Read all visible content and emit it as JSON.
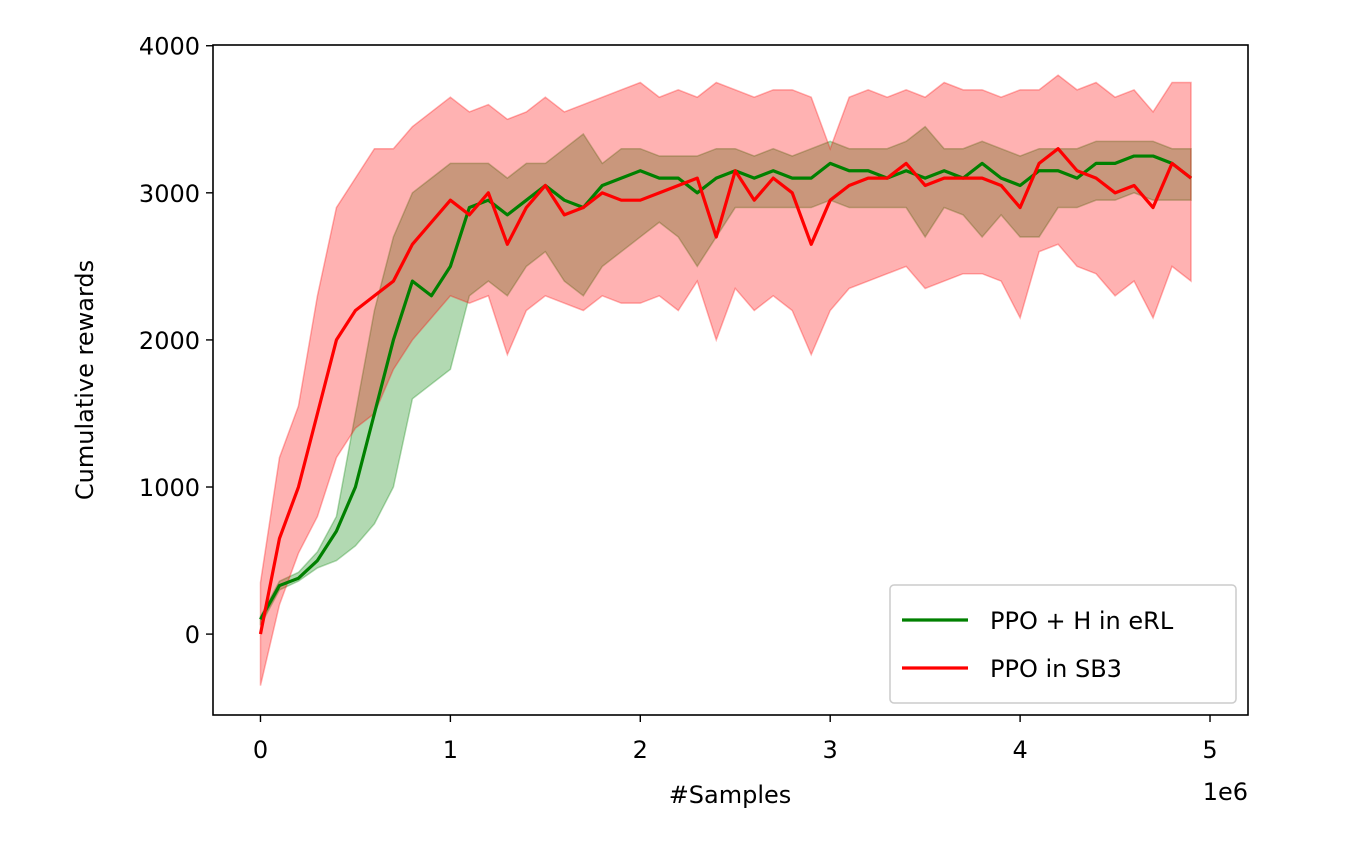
{
  "chart_data": {
    "type": "line",
    "xlabel": "#Samples",
    "ylabel": "Cumulative rewards",
    "x_offset_label": "1e6",
    "x": [
      0,
      0.1,
      0.2,
      0.3,
      0.4,
      0.5,
      0.6,
      0.7,
      0.8,
      0.9,
      1.0,
      1.1,
      1.2,
      1.3,
      1.4,
      1.5,
      1.6,
      1.7,
      1.8,
      1.9,
      2.0,
      2.1,
      2.2,
      2.3,
      2.4,
      2.5,
      2.6,
      2.7,
      2.8,
      2.9,
      3.0,
      3.1,
      3.2,
      3.3,
      3.4,
      3.5,
      3.6,
      3.7,
      3.8,
      3.9,
      4.0,
      4.1,
      4.2,
      4.3,
      4.4,
      4.5,
      4.6,
      4.7,
      4.8,
      4.9
    ],
    "xlim": [
      -0.25,
      5.2
    ],
    "xticks": [
      0,
      1,
      2,
      3,
      4,
      5
    ],
    "ylim": [
      -550,
      4005
    ],
    "yticks": [
      0,
      1000,
      2000,
      3000,
      4000
    ],
    "grid": false,
    "legend": "lower right",
    "series": [
      {
        "name": "PPO + H in eRL",
        "color": "#008000",
        "values": [
          100,
          330,
          380,
          500,
          700,
          1000,
          1500,
          2000,
          2400,
          2300,
          2500,
          2900,
          2950,
          2850,
          2950,
          3050,
          2950,
          2900,
          3050,
          3100,
          3150,
          3100,
          3100,
          3000,
          3100,
          3150,
          3100,
          3150,
          3100,
          3100,
          3200,
          3150,
          3150,
          3100,
          3150,
          3100,
          3150,
          3100,
          3200,
          3100,
          3050,
          3150,
          3150,
          3100,
          3200,
          3200,
          3250,
          3250,
          3200,
          3100
        ],
        "lower": [
          60,
          300,
          360,
          450,
          500,
          600,
          750,
          1000,
          1600,
          1700,
          1800,
          2300,
          2400,
          2300,
          2500,
          2600,
          2400,
          2300,
          2500,
          2600,
          2700,
          2800,
          2700,
          2500,
          2700,
          2900,
          2900,
          2900,
          2900,
          2900,
          2950,
          2900,
          2900,
          2900,
          2900,
          2700,
          2900,
          2850,
          2700,
          2850,
          2700,
          2700,
          2900,
          2900,
          2950,
          2950,
          3000,
          2950,
          2950,
          2950
        ],
        "upper": [
          120,
          360,
          420,
          560,
          800,
          1500,
          2200,
          2700,
          3000,
          3100,
          3200,
          3200,
          3200,
          3100,
          3200,
          3200,
          3300,
          3400,
          3200,
          3300,
          3300,
          3250,
          3250,
          3250,
          3300,
          3300,
          3250,
          3300,
          3250,
          3300,
          3350,
          3300,
          3300,
          3300,
          3350,
          3450,
          3300,
          3300,
          3350,
          3300,
          3250,
          3300,
          3300,
          3300,
          3350,
          3350,
          3350,
          3350,
          3300,
          3300
        ]
      },
      {
        "name": "PPO in SB3",
        "color": "#ff0000",
        "values": [
          0,
          650,
          1000,
          1500,
          2000,
          2200,
          2300,
          2400,
          2650,
          2800,
          2950,
          2850,
          3000,
          2650,
          2900,
          3050,
          2850,
          2900,
          3000,
          2950,
          2950,
          3000,
          3050,
          3100,
          2700,
          3150,
          2950,
          3100,
          3000,
          2650,
          2950,
          3050,
          3100,
          3100,
          3200,
          3050,
          3100,
          3100,
          3100,
          3050,
          2900,
          3200,
          3300,
          3150,
          3100,
          3000,
          3050,
          2900,
          3200,
          3100
        ],
        "lower": [
          -350,
          200,
          550,
          800,
          1200,
          1400,
          1500,
          1800,
          2000,
          2150,
          2300,
          2250,
          2300,
          1900,
          2200,
          2300,
          2250,
          2200,
          2300,
          2250,
          2250,
          2300,
          2200,
          2400,
          2000,
          2350,
          2200,
          2300,
          2200,
          1900,
          2200,
          2350,
          2400,
          2450,
          2500,
          2350,
          2400,
          2450,
          2450,
          2400,
          2150,
          2600,
          2650,
          2500,
          2450,
          2300,
          2400,
          2150,
          2500,
          2400
        ],
        "upper": [
          350,
          1200,
          1550,
          2300,
          2900,
          3100,
          3300,
          3300,
          3450,
          3550,
          3650,
          3550,
          3600,
          3500,
          3550,
          3650,
          3550,
          3600,
          3650,
          3700,
          3750,
          3650,
          3700,
          3650,
          3750,
          3700,
          3650,
          3700,
          3700,
          3650,
          3300,
          3650,
          3700,
          3650,
          3700,
          3650,
          3750,
          3700,
          3700,
          3650,
          3700,
          3700,
          3800,
          3700,
          3750,
          3650,
          3700,
          3550,
          3750,
          3750
        ]
      }
    ]
  }
}
